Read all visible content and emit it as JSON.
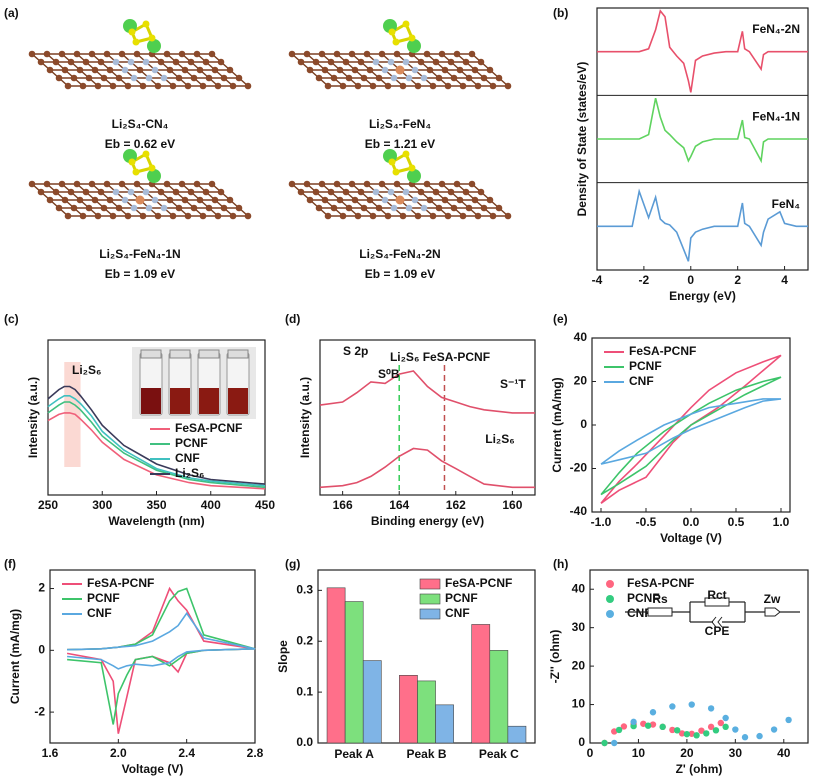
{
  "panel_labels": [
    "(a)",
    "(b)",
    "(c)",
    "(d)",
    "(e)",
    "(f)",
    "(g)",
    "(h)"
  ],
  "structures": [
    {
      "name": "Li₂S₄-CN₄",
      "energy": "Eb = 0.62 eV"
    },
    {
      "name": "Li₂S₄-FeN₄",
      "energy": "Eb = 1.21 eV"
    },
    {
      "name": "Li₂S₄-FeN₄-1N",
      "energy": "Eb = 1.09 eV"
    },
    {
      "name": "Li₂S₄-FeN₄-2N",
      "energy": "Eb = 1.09 eV"
    }
  ],
  "chart_data": [
    {
      "type": "line",
      "stacked_panels": true,
      "legend": "inline",
      "xlabel": "Energy (eV)",
      "ylabel": "Density of State (states/eV)",
      "xlim": [
        -4,
        5
      ],
      "xticks": [
        -4,
        -2,
        0,
        2,
        4
      ],
      "ylim": [
        -3,
        3
      ],
      "x": [
        -4,
        -3,
        -2.5,
        -2.2,
        -1.8,
        -1.5,
        -1.3,
        -1.1,
        -0.9,
        -0.6,
        -0.3,
        -0.1,
        0,
        0.2,
        0.5,
        1,
        1.5,
        2,
        2.2,
        2.3,
        2.5,
        3,
        3.1,
        3.3,
        3.8,
        4,
        4.5,
        5
      ],
      "series": [
        {
          "name": "FeN₄-2N",
          "color": "#e8506b",
          "values": [
            0,
            0,
            0,
            0,
            0.2,
            1.5,
            2.8,
            2.4,
            0.3,
            -0.3,
            -0.8,
            -2,
            -2.8,
            -0.6,
            -0.3,
            -0.1,
            0,
            0,
            1.4,
            0.2,
            0,
            -1.2,
            -0.2,
            0,
            0,
            0,
            0,
            0
          ]
        },
        {
          "name": "FeN₄-1N",
          "color": "#5fd35f",
          "values": [
            0,
            0,
            0,
            0,
            0.3,
            2.8,
            1.5,
            0.6,
            0.3,
            -0.2,
            -0.6,
            -1.5,
            -1.2,
            -0.5,
            -0.2,
            0,
            0,
            0,
            1.3,
            0.1,
            0,
            -1.5,
            -0.2,
            0,
            0,
            0,
            0,
            0
          ]
        },
        {
          "name": "FeN₄",
          "color": "#5b9bd5",
          "values": [
            0,
            0,
            0,
            2.4,
            0.6,
            2.0,
            0.5,
            0.2,
            0.1,
            -0.4,
            -1.6,
            -2.4,
            -0.8,
            -0.4,
            -0.2,
            0,
            0,
            0,
            1.6,
            0.2,
            0,
            -1.3,
            -0.4,
            0.5,
            1.0,
            0.2,
            0,
            0
          ]
        }
      ]
    },
    {
      "type": "line",
      "legend": "lower right",
      "xlabel": "Wavelength (nm)",
      "ylabel": "Intensity (a.u.)",
      "xlim": [
        250,
        450
      ],
      "xticks": [
        250,
        300,
        350,
        400,
        450
      ],
      "ylim": [
        0,
        1
      ],
      "annotations": [
        "Li₂S₆"
      ],
      "x": [
        250,
        260,
        265,
        270,
        275,
        280,
        290,
        300,
        320,
        350,
        380,
        400,
        450
      ],
      "series": [
        {
          "name": "FeSA-PCNF",
          "color": "#f0607a",
          "values": [
            0.48,
            0.52,
            0.53,
            0.53,
            0.52,
            0.49,
            0.42,
            0.34,
            0.23,
            0.13,
            0.08,
            0.06,
            0.04
          ]
        },
        {
          "name": "PCNF",
          "color": "#40c080",
          "values": [
            0.53,
            0.58,
            0.6,
            0.6,
            0.58,
            0.55,
            0.47,
            0.38,
            0.27,
            0.16,
            0.1,
            0.08,
            0.05
          ]
        },
        {
          "name": "CNF",
          "color": "#40c0c0",
          "values": [
            0.57,
            0.62,
            0.64,
            0.64,
            0.62,
            0.59,
            0.51,
            0.41,
            0.29,
            0.17,
            0.11,
            0.09,
            0.06
          ]
        },
        {
          "name": "Li₂S₆",
          "color": "#3a3a5a",
          "values": [
            0.62,
            0.68,
            0.7,
            0.7,
            0.68,
            0.64,
            0.55,
            0.45,
            0.32,
            0.2,
            0.13,
            0.1,
            0.07
          ]
        }
      ]
    },
    {
      "type": "line",
      "legend": "inline",
      "xlabel": "Binding energy (eV)",
      "ylabel": "Intensity (a.u.)",
      "xlim": [
        166.8,
        159.2
      ],
      "xticks": [
        166,
        164,
        162,
        160
      ],
      "ylim": [
        0,
        1
      ],
      "annotations": [
        "S 2p",
        "S⁰B",
        "S⁻¹T"
      ],
      "vlines": [
        {
          "x": 164,
          "color": "#33cc55"
        },
        {
          "x": 162.4,
          "color": "#c05050"
        }
      ],
      "x": [
        166.8,
        166,
        165.5,
        165,
        164.5,
        164,
        163.5,
        163,
        162.5,
        162,
        161.5,
        161,
        160,
        159.2
      ],
      "series": [
        {
          "name": "Li₂S₆ FeSA-PCNF",
          "color": "#e0506b",
          "values": [
            0.58,
            0.6,
            0.66,
            0.73,
            0.72,
            0.78,
            0.8,
            0.7,
            0.63,
            0.6,
            0.57,
            0.55,
            0.53,
            0.53
          ]
        },
        {
          "name": "Li₂S₆",
          "color": "#e0506b",
          "values": [
            0.05,
            0.06,
            0.08,
            0.12,
            0.18,
            0.25,
            0.3,
            0.29,
            0.22,
            0.17,
            0.12,
            0.07,
            0.05,
            0.05
          ]
        }
      ]
    },
    {
      "type": "line",
      "legend": "upper left",
      "xlabel": "Voltage (V)",
      "ylabel": "Current (mA/mg)",
      "xlim": [
        -1.1,
        1.1
      ],
      "xticks": [
        {
          "value": -1,
          "label": "-1.0"
        },
        {
          "value": -0.5,
          "label": "-0.5"
        },
        {
          "value": 0,
          "label": "0.0"
        },
        {
          "value": 0.5,
          "label": "0.5"
        },
        {
          "value": 1,
          "label": "1.0"
        }
      ],
      "ylim": [
        -40,
        40
      ],
      "yticks": [
        -40,
        -20,
        0,
        20,
        40
      ],
      "x": [
        -1,
        -0.8,
        -0.5,
        -0.2,
        0,
        0.3,
        0.6,
        0.8,
        1,
        0.8,
        0.5,
        0.2,
        0,
        -0.3,
        -0.6,
        -0.8,
        -1
      ],
      "series": [
        {
          "name": "FeSA-PCNF",
          "color": "#ee4f78",
          "values": [
            -36,
            -30,
            -24,
            -8,
            0,
            8,
            18,
            25,
            32,
            29,
            24,
            16,
            8,
            -5,
            -18,
            -26,
            -36
          ]
        },
        {
          "name": "PCNF",
          "color": "#3dc46a",
          "values": [
            -32,
            -27,
            -19,
            -7,
            0,
            7,
            14,
            18,
            22,
            20,
            16,
            10,
            5,
            -3,
            -13,
            -22,
            -32
          ]
        },
        {
          "name": "CNF",
          "color": "#5aa8e0",
          "values": [
            -18,
            -16,
            -13,
            -6,
            -2,
            3,
            8,
            11,
            12,
            12,
            10,
            8,
            5,
            0,
            -7,
            -12,
            -18
          ]
        }
      ]
    },
    {
      "type": "line",
      "legend": "upper left",
      "xlabel": "Voltage (V)",
      "ylabel": "Current (mA/mg)",
      "xlim": [
        1.6,
        2.8
      ],
      "xticks": [
        1.6,
        {
          "value": 2,
          "label": "2.0"
        },
        2.4,
        2.8
      ],
      "ylim": [
        -3,
        2.6
      ],
      "yticks": [
        -2,
        0,
        2
      ],
      "x": [
        1.7,
        1.9,
        2.0,
        2.1,
        2.2,
        2.3,
        2.35,
        2.4,
        2.5,
        2.8,
        2.5,
        2.4,
        2.35,
        2.3,
        2.2,
        2.1,
        2.05,
        2.0,
        1.97,
        1.9,
        1.7
      ],
      "series": [
        {
          "name": "FeSA-PCNF",
          "color": "#ee4f78",
          "values": [
            0.02,
            0.05,
            0.1,
            0.2,
            0.6,
            2.0,
            1.6,
            1.3,
            0.3,
            0.05,
            0,
            -0.1,
            -0.7,
            -0.4,
            -0.2,
            -0.3,
            -1.5,
            -2.7,
            -1.0,
            -0.3,
            -0.1
          ]
        },
        {
          "name": "PCNF",
          "color": "#3dc46a",
          "values": [
            0.02,
            0.05,
            0.1,
            0.2,
            0.5,
            1.6,
            1.9,
            2.0,
            0.5,
            0.05,
            0,
            -0.1,
            -0.3,
            -0.5,
            -0.2,
            -0.3,
            -0.8,
            -1.4,
            -2.4,
            -0.4,
            -0.3
          ]
        },
        {
          "name": "CNF",
          "color": "#5aa8e0",
          "values": [
            0.02,
            0.05,
            0.1,
            0.15,
            0.3,
            0.6,
            0.8,
            1.2,
            0.4,
            0.05,
            0,
            -0.05,
            -0.2,
            -0.4,
            -0.5,
            -0.45,
            -0.5,
            -0.6,
            -0.5,
            -0.3,
            -0.2
          ]
        }
      ]
    },
    {
      "type": "bar",
      "legend": "upper right",
      "ylabel": "Slope",
      "categories": [
        "Peak A",
        "Peak B",
        "Peak C"
      ],
      "ylim": [
        0,
        0.34
      ],
      "yticks": [
        {
          "value": 0,
          "label": "0.0"
        },
        0.1,
        0.2,
        0.3
      ],
      "series": [
        {
          "name": "FeSA-PCNF",
          "color": "#ff6f8a",
          "values": [
            0.305,
            0.133,
            0.233
          ]
        },
        {
          "name": "PCNF",
          "color": "#7de07d",
          "values": [
            0.278,
            0.122,
            0.182
          ]
        },
        {
          "name": "CNF",
          "color": "#7fb4e6",
          "values": [
            0.162,
            0.075,
            0.033
          ]
        }
      ]
    },
    {
      "type": "scatter",
      "legend": "upper left",
      "xlabel": "Z' (ohm)",
      "ylabel": "-Z'' (ohm)",
      "xlim": [
        0,
        45
      ],
      "xticks": [
        0,
        10,
        20,
        30,
        40
      ],
      "ylim": [
        0,
        45
      ],
      "yticks": [
        0,
        10,
        20,
        30,
        40
      ],
      "circuit": [
        "Rs",
        "Rct",
        "Zw",
        "CPE"
      ],
      "series": [
        {
          "name": "FeSA-PCNF",
          "color": "#ff6680",
          "x": [
            3,
            5,
            7,
            9,
            11,
            13,
            15,
            17,
            19,
            21,
            23,
            25,
            27
          ],
          "values": [
            0,
            3,
            4.3,
            4.9,
            5,
            4.8,
            4.2,
            3.4,
            2.5,
            2.4,
            3.2,
            4.2,
            5.2
          ]
        },
        {
          "name": "PCNF",
          "color": "#33cc80",
          "x": [
            3,
            6,
            9,
            12,
            15,
            18,
            20,
            22,
            24,
            26,
            28
          ],
          "values": [
            0,
            3.4,
            4.4,
            4.5,
            4.2,
            3.3,
            2.3,
            2,
            2.5,
            3.3,
            4.2
          ]
        },
        {
          "name": "CNF",
          "color": "#5aafe0",
          "x": [
            5,
            9,
            13,
            17,
            21,
            25,
            28,
            30,
            32,
            35,
            38,
            41
          ],
          "values": [
            0,
            5.5,
            8,
            9.5,
            10,
            9,
            6.5,
            3.5,
            1.5,
            1.8,
            3.5,
            6
          ]
        }
      ]
    }
  ]
}
